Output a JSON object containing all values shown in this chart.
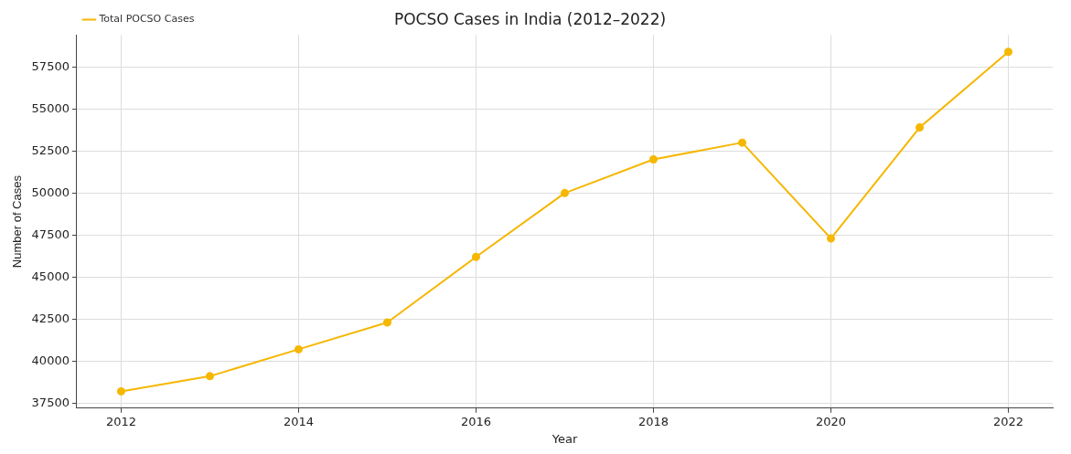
{
  "chart_data": {
    "type": "line",
    "title": "POCSO Cases in India (2012–2022)",
    "xlabel": "Year",
    "ylabel": "Number of Cases",
    "x": [
      2012,
      2013,
      2014,
      2015,
      2016,
      2017,
      2018,
      2019,
      2020,
      2021,
      2022
    ],
    "series": [
      {
        "name": "Total POCSO Cases",
        "color": "#f5b700",
        "values": [
          38200,
          39100,
          40700,
          42300,
          46200,
          50000,
          52000,
          53000,
          47300,
          53900,
          58400
        ]
      }
    ],
    "xlim": [
      2011.5,
      2022.5
    ],
    "xticks": [
      2012,
      2014,
      2016,
      2018,
      2020,
      2022
    ],
    "ylim": [
      37200,
      59400
    ],
    "yticks": [
      37500,
      40000,
      42500,
      45000,
      47500,
      50000,
      52500,
      55000,
      57500
    ],
    "grid": true,
    "legend": "top left",
    "marker": "circle",
    "line_style": "solid"
  }
}
